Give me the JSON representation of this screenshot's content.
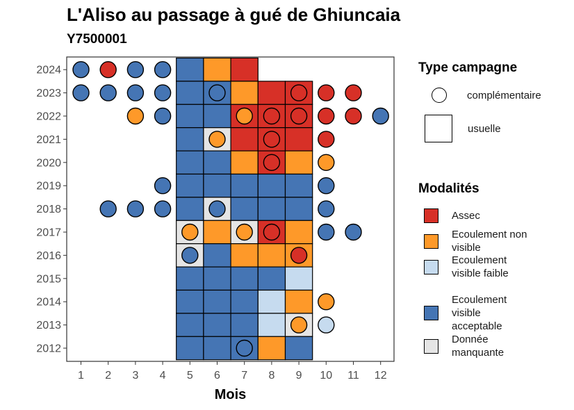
{
  "title": "L'Aliso au passage à gué de Ghiuncaia",
  "subtitle": "Y7500001",
  "legend": {
    "type_title": "Type campagne",
    "type_items": [
      {
        "label": "complémentaire",
        "shape": "circle"
      },
      {
        "label": "usuelle",
        "shape": "square"
      }
    ],
    "mod_title": "Modalités",
    "mod_items": [
      {
        "key": "A",
        "label": "Assec",
        "color": "#d73027"
      },
      {
        "key": "N",
        "label": "Ecoulement non visible",
        "color": "#fe9929"
      },
      {
        "key": "F",
        "label": "Ecoulement visible faible",
        "color": "#c6dbef"
      },
      {
        "key": "V",
        "label": "Ecoulement visible acceptable",
        "color": "#4575b4"
      },
      {
        "key": "M",
        "label": "Donnée manquante",
        "color": "#e5e5e5"
      }
    ]
  },
  "chart_data": {
    "type": "heatmap",
    "title": "L'Aliso au passage à gué de Ghiuncaia",
    "subtitle": "Y7500001",
    "xlabel": "Mois",
    "ylabel": "",
    "x_ticks": [
      "1",
      "2",
      "3",
      "4",
      "5",
      "6",
      "7",
      "8",
      "9",
      "10",
      "11",
      "12"
    ],
    "y_ticks": [
      "2012",
      "2013",
      "2014",
      "2015",
      "2016",
      "2017",
      "2018",
      "2019",
      "2020",
      "2021",
      "2022",
      "2023",
      "2024"
    ],
    "colors": {
      "A": "#d73027",
      "N": "#fe9929",
      "F": "#c6dbef",
      "V": "#4575b4",
      "M": "#e5e5e5"
    },
    "usuelle": [
      {
        "year": 2024,
        "months": [
          5,
          6,
          7
        ],
        "values": [
          "V",
          "N",
          "A"
        ]
      },
      {
        "year": 2023,
        "months": [
          5,
          6,
          7,
          8,
          9
        ],
        "values": [
          "V",
          "V",
          "N",
          "A",
          "A"
        ]
      },
      {
        "year": 2022,
        "months": [
          5,
          6,
          7,
          8,
          9
        ],
        "values": [
          "V",
          "V",
          "A",
          "A",
          "A"
        ]
      },
      {
        "year": 2021,
        "months": [
          5,
          6,
          7,
          8,
          9
        ],
        "values": [
          "V",
          "M",
          "A",
          "A",
          "A"
        ]
      },
      {
        "year": 2020,
        "months": [
          5,
          6,
          7,
          8,
          9
        ],
        "values": [
          "V",
          "V",
          "N",
          "A",
          "N"
        ]
      },
      {
        "year": 2019,
        "months": [
          5,
          6,
          7,
          8,
          9
        ],
        "values": [
          "V",
          "V",
          "V",
          "V",
          "V"
        ]
      },
      {
        "year": 2018,
        "months": [
          5,
          6,
          7,
          8,
          9
        ],
        "values": [
          "V",
          "M",
          "V",
          "V",
          "V"
        ]
      },
      {
        "year": 2017,
        "months": [
          5,
          6,
          7,
          8,
          9
        ],
        "values": [
          "M",
          "N",
          "M",
          "A",
          "N"
        ]
      },
      {
        "year": 2016,
        "months": [
          5,
          6,
          7,
          8,
          9
        ],
        "values": [
          "M",
          "V",
          "N",
          "N",
          "N"
        ]
      },
      {
        "year": 2015,
        "months": [
          5,
          6,
          7,
          8,
          9
        ],
        "values": [
          "V",
          "V",
          "V",
          "V",
          "F"
        ]
      },
      {
        "year": 2014,
        "months": [
          5,
          6,
          7,
          8,
          9
        ],
        "values": [
          "V",
          "V",
          "V",
          "F",
          "N"
        ]
      },
      {
        "year": 2013,
        "months": [
          5,
          6,
          7,
          8,
          9
        ],
        "values": [
          "V",
          "V",
          "V",
          "F",
          "M"
        ]
      },
      {
        "year": 2012,
        "months": [
          5,
          6,
          7,
          8,
          9
        ],
        "values": [
          "V",
          "V",
          "V",
          "N",
          "V"
        ]
      }
    ],
    "complementaire": [
      {
        "year": 2024,
        "month": 1,
        "value": "V"
      },
      {
        "year": 2024,
        "month": 2,
        "value": "A"
      },
      {
        "year": 2024,
        "month": 3,
        "value": "V"
      },
      {
        "year": 2024,
        "month": 4,
        "value": "V"
      },
      {
        "year": 2023,
        "month": 1,
        "value": "V"
      },
      {
        "year": 2023,
        "month": 2,
        "value": "V"
      },
      {
        "year": 2023,
        "month": 3,
        "value": "V"
      },
      {
        "year": 2023,
        "month": 4,
        "value": "V"
      },
      {
        "year": 2023,
        "month": 6,
        "value": "V"
      },
      {
        "year": 2023,
        "month": 9,
        "value": "A"
      },
      {
        "year": 2023,
        "month": 10,
        "value": "A"
      },
      {
        "year": 2023,
        "month": 11,
        "value": "A"
      },
      {
        "year": 2022,
        "month": 3,
        "value": "N"
      },
      {
        "year": 2022,
        "month": 4,
        "value": "V"
      },
      {
        "year": 2022,
        "month": 7,
        "value": "N"
      },
      {
        "year": 2022,
        "month": 8,
        "value": "A"
      },
      {
        "year": 2022,
        "month": 9,
        "value": "A"
      },
      {
        "year": 2022,
        "month": 10,
        "value": "A"
      },
      {
        "year": 2022,
        "month": 11,
        "value": "A"
      },
      {
        "year": 2022,
        "month": 12,
        "value": "V"
      },
      {
        "year": 2021,
        "month": 6,
        "value": "N"
      },
      {
        "year": 2021,
        "month": 8,
        "value": "A"
      },
      {
        "year": 2021,
        "month": 10,
        "value": "A"
      },
      {
        "year": 2020,
        "month": 8,
        "value": "A"
      },
      {
        "year": 2020,
        "month": 10,
        "value": "N"
      },
      {
        "year": 2019,
        "month": 4,
        "value": "V"
      },
      {
        "year": 2019,
        "month": 10,
        "value": "V"
      },
      {
        "year": 2018,
        "month": 2,
        "value": "V"
      },
      {
        "year": 2018,
        "month": 3,
        "value": "V"
      },
      {
        "year": 2018,
        "month": 4,
        "value": "V"
      },
      {
        "year": 2018,
        "month": 6,
        "value": "V"
      },
      {
        "year": 2018,
        "month": 10,
        "value": "V"
      },
      {
        "year": 2017,
        "month": 5,
        "value": "N"
      },
      {
        "year": 2017,
        "month": 7,
        "value": "N"
      },
      {
        "year": 2017,
        "month": 8,
        "value": "A"
      },
      {
        "year": 2017,
        "month": 10,
        "value": "V"
      },
      {
        "year": 2017,
        "month": 11,
        "value": "V"
      },
      {
        "year": 2016,
        "month": 5,
        "value": "V"
      },
      {
        "year": 2016,
        "month": 9,
        "value": "A"
      },
      {
        "year": 2014,
        "month": 10,
        "value": "N"
      },
      {
        "year": 2013,
        "month": 9,
        "value": "N"
      },
      {
        "year": 2013,
        "month": 10,
        "value": "F"
      },
      {
        "year": 2012,
        "month": 7,
        "value": "V"
      }
    ]
  }
}
